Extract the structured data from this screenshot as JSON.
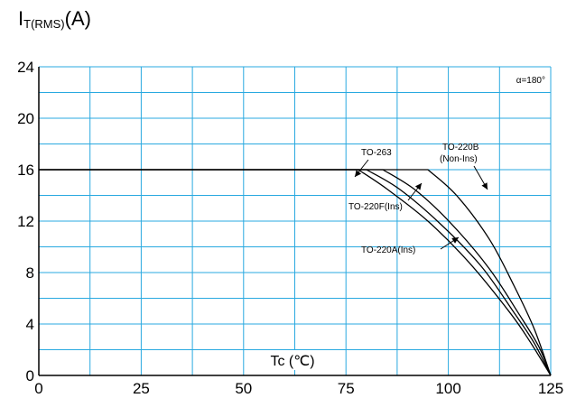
{
  "chart_data": {
    "type": "line",
    "ylabel": {
      "main": "I",
      "sub": "T(RMS)",
      "unit": "(A)"
    },
    "xlabel": "Tc (℃)",
    "xlim": [
      0,
      125
    ],
    "ylim": [
      0,
      24
    ],
    "x_ticks": [
      "0",
      "25",
      "50",
      "75",
      "100",
      "125"
    ],
    "y_ticks": [
      "0",
      "4",
      "8",
      "12",
      "16",
      "20",
      "24"
    ],
    "grid": true,
    "condition_label": "α=180°",
    "series": [
      {
        "name": "TO-263",
        "color": "#000000",
        "x": [
          0,
          78,
          85,
          95,
          105,
          115,
          120,
          125
        ],
        "y": [
          16,
          16,
          14.5,
          12.0,
          8.8,
          4.9,
          2.6,
          0
        ]
      },
      {
        "name": "TO-220F(Ins)",
        "color": "#000000",
        "x": [
          0,
          80,
          88,
          98,
          108,
          116,
          121,
          125
        ],
        "y": [
          16,
          16,
          14.5,
          11.8,
          8.5,
          4.9,
          2.5,
          0
        ]
      },
      {
        "name": "TO-220A(Ins)",
        "color": "#000000",
        "x": [
          0,
          84,
          92,
          101,
          110,
          117,
          122,
          125
        ],
        "y": [
          16,
          16,
          14.4,
          11.7,
          8.3,
          4.9,
          2.3,
          0
        ]
      },
      {
        "name": "TO-220B (Non-Ins)",
        "color": "#000000",
        "x": [
          0,
          95,
          102,
          110,
          116,
          121,
          125
        ],
        "y": [
          16,
          16,
          14.0,
          10.6,
          7.0,
          3.6,
          0
        ]
      }
    ],
    "annotations": [
      {
        "text": "TO-263",
        "target_series": "TO-263"
      },
      {
        "text": "TO-220F(Ins)",
        "target_series": "TO-220F(Ins)"
      },
      {
        "text": "TO-220A(Ins)",
        "target_series": "TO-220A(Ins)"
      },
      {
        "text": "TO-220B",
        "text2": "(Non-Ins)",
        "target_series": "TO-220B (Non-Ins)"
      }
    ],
    "colors": {
      "grid": "#29a9e0",
      "curve": "#000000"
    }
  }
}
